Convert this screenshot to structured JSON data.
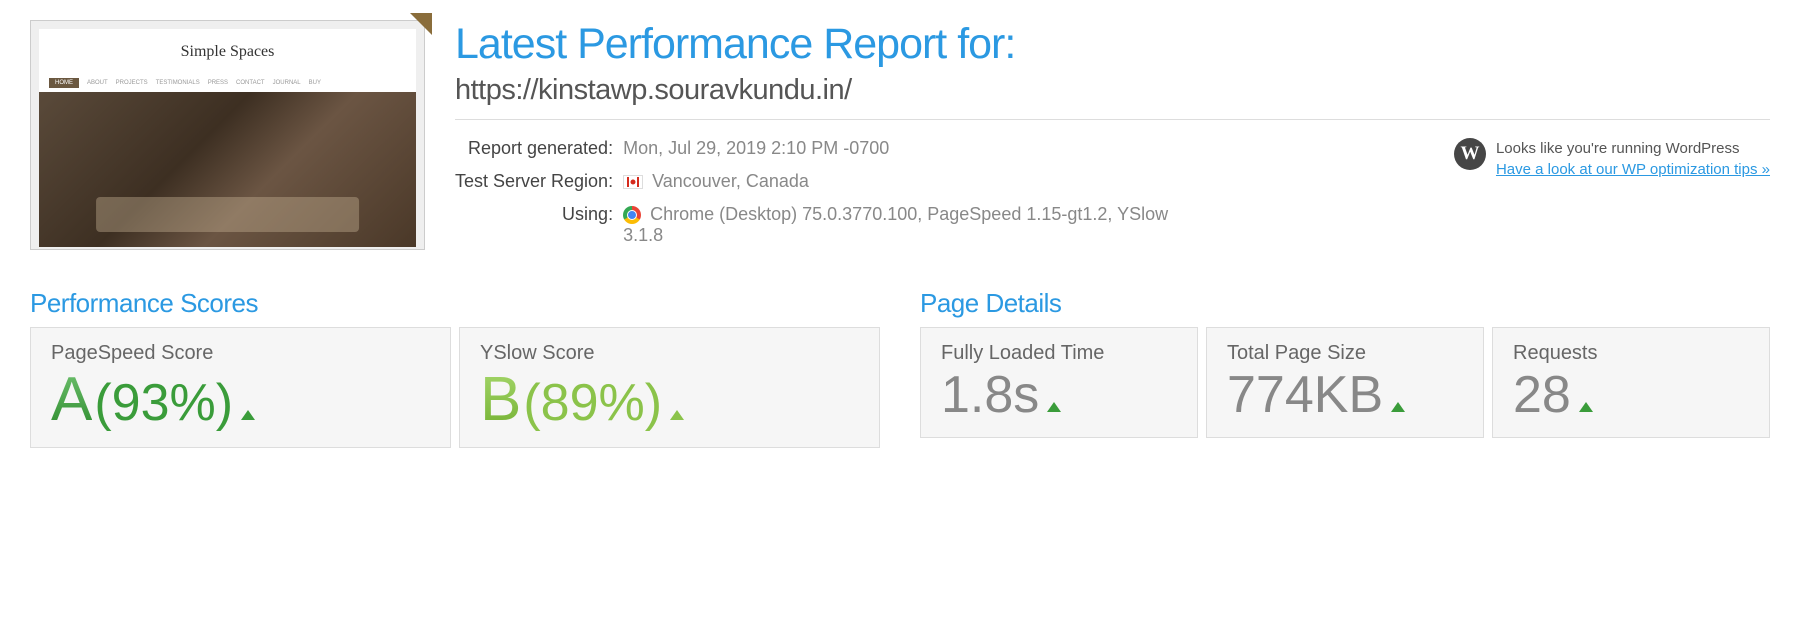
{
  "header": {
    "title": "Latest Performance Report for:",
    "url": "https://kinstawp.souravkundu.in/",
    "thumbnail_title": "Simple Spaces",
    "thumb_nav": {
      "home": "HOME",
      "about": "ABOUT",
      "projects": "PROJECTS",
      "testimonials": "TESTIMONIALS",
      "press": "PRESS",
      "contact": "CONTACT",
      "journal": "JOURNAL",
      "buy": "BUY"
    }
  },
  "meta": {
    "generated_label": "Report generated:",
    "generated_value": "Mon, Jul 29, 2019 2:10 PM -0700",
    "region_label": "Test Server Region:",
    "region_value": "Vancouver, Canada",
    "using_label": "Using:",
    "using_value": "Chrome (Desktop) 75.0.3770.100, PageSpeed 1.15-gt1.2, YSlow 3.1.8"
  },
  "wordpress": {
    "icon_text": "W",
    "detected": "Looks like you're running WordPress",
    "link": "Have a look at our WP optimization tips »"
  },
  "scores": {
    "section_title": "Performance Scores",
    "pagespeed": {
      "label": "PageSpeed Score",
      "grade": "A",
      "percent": "(93%)",
      "grade_color": "#3a9c3a",
      "caret_direction": "up"
    },
    "yslow": {
      "label": "YSlow Score",
      "grade": "B",
      "percent": "(89%)",
      "grade_color": "#8bc34a",
      "caret_direction": "up"
    }
  },
  "details": {
    "section_title": "Page Details",
    "loaded": {
      "label": "Fully Loaded Time",
      "value": "1.8s",
      "caret_direction": "up"
    },
    "size": {
      "label": "Total Page Size",
      "value": "774KB",
      "caret_direction": "up"
    },
    "requests": {
      "label": "Requests",
      "value": "28",
      "caret_direction": "up"
    }
  },
  "colors": {
    "primary": "#2b99e2",
    "grade_a": "#3a9c3a",
    "grade_b": "#8bc34a",
    "text_muted": "#888",
    "card_bg": "#f6f6f6"
  }
}
